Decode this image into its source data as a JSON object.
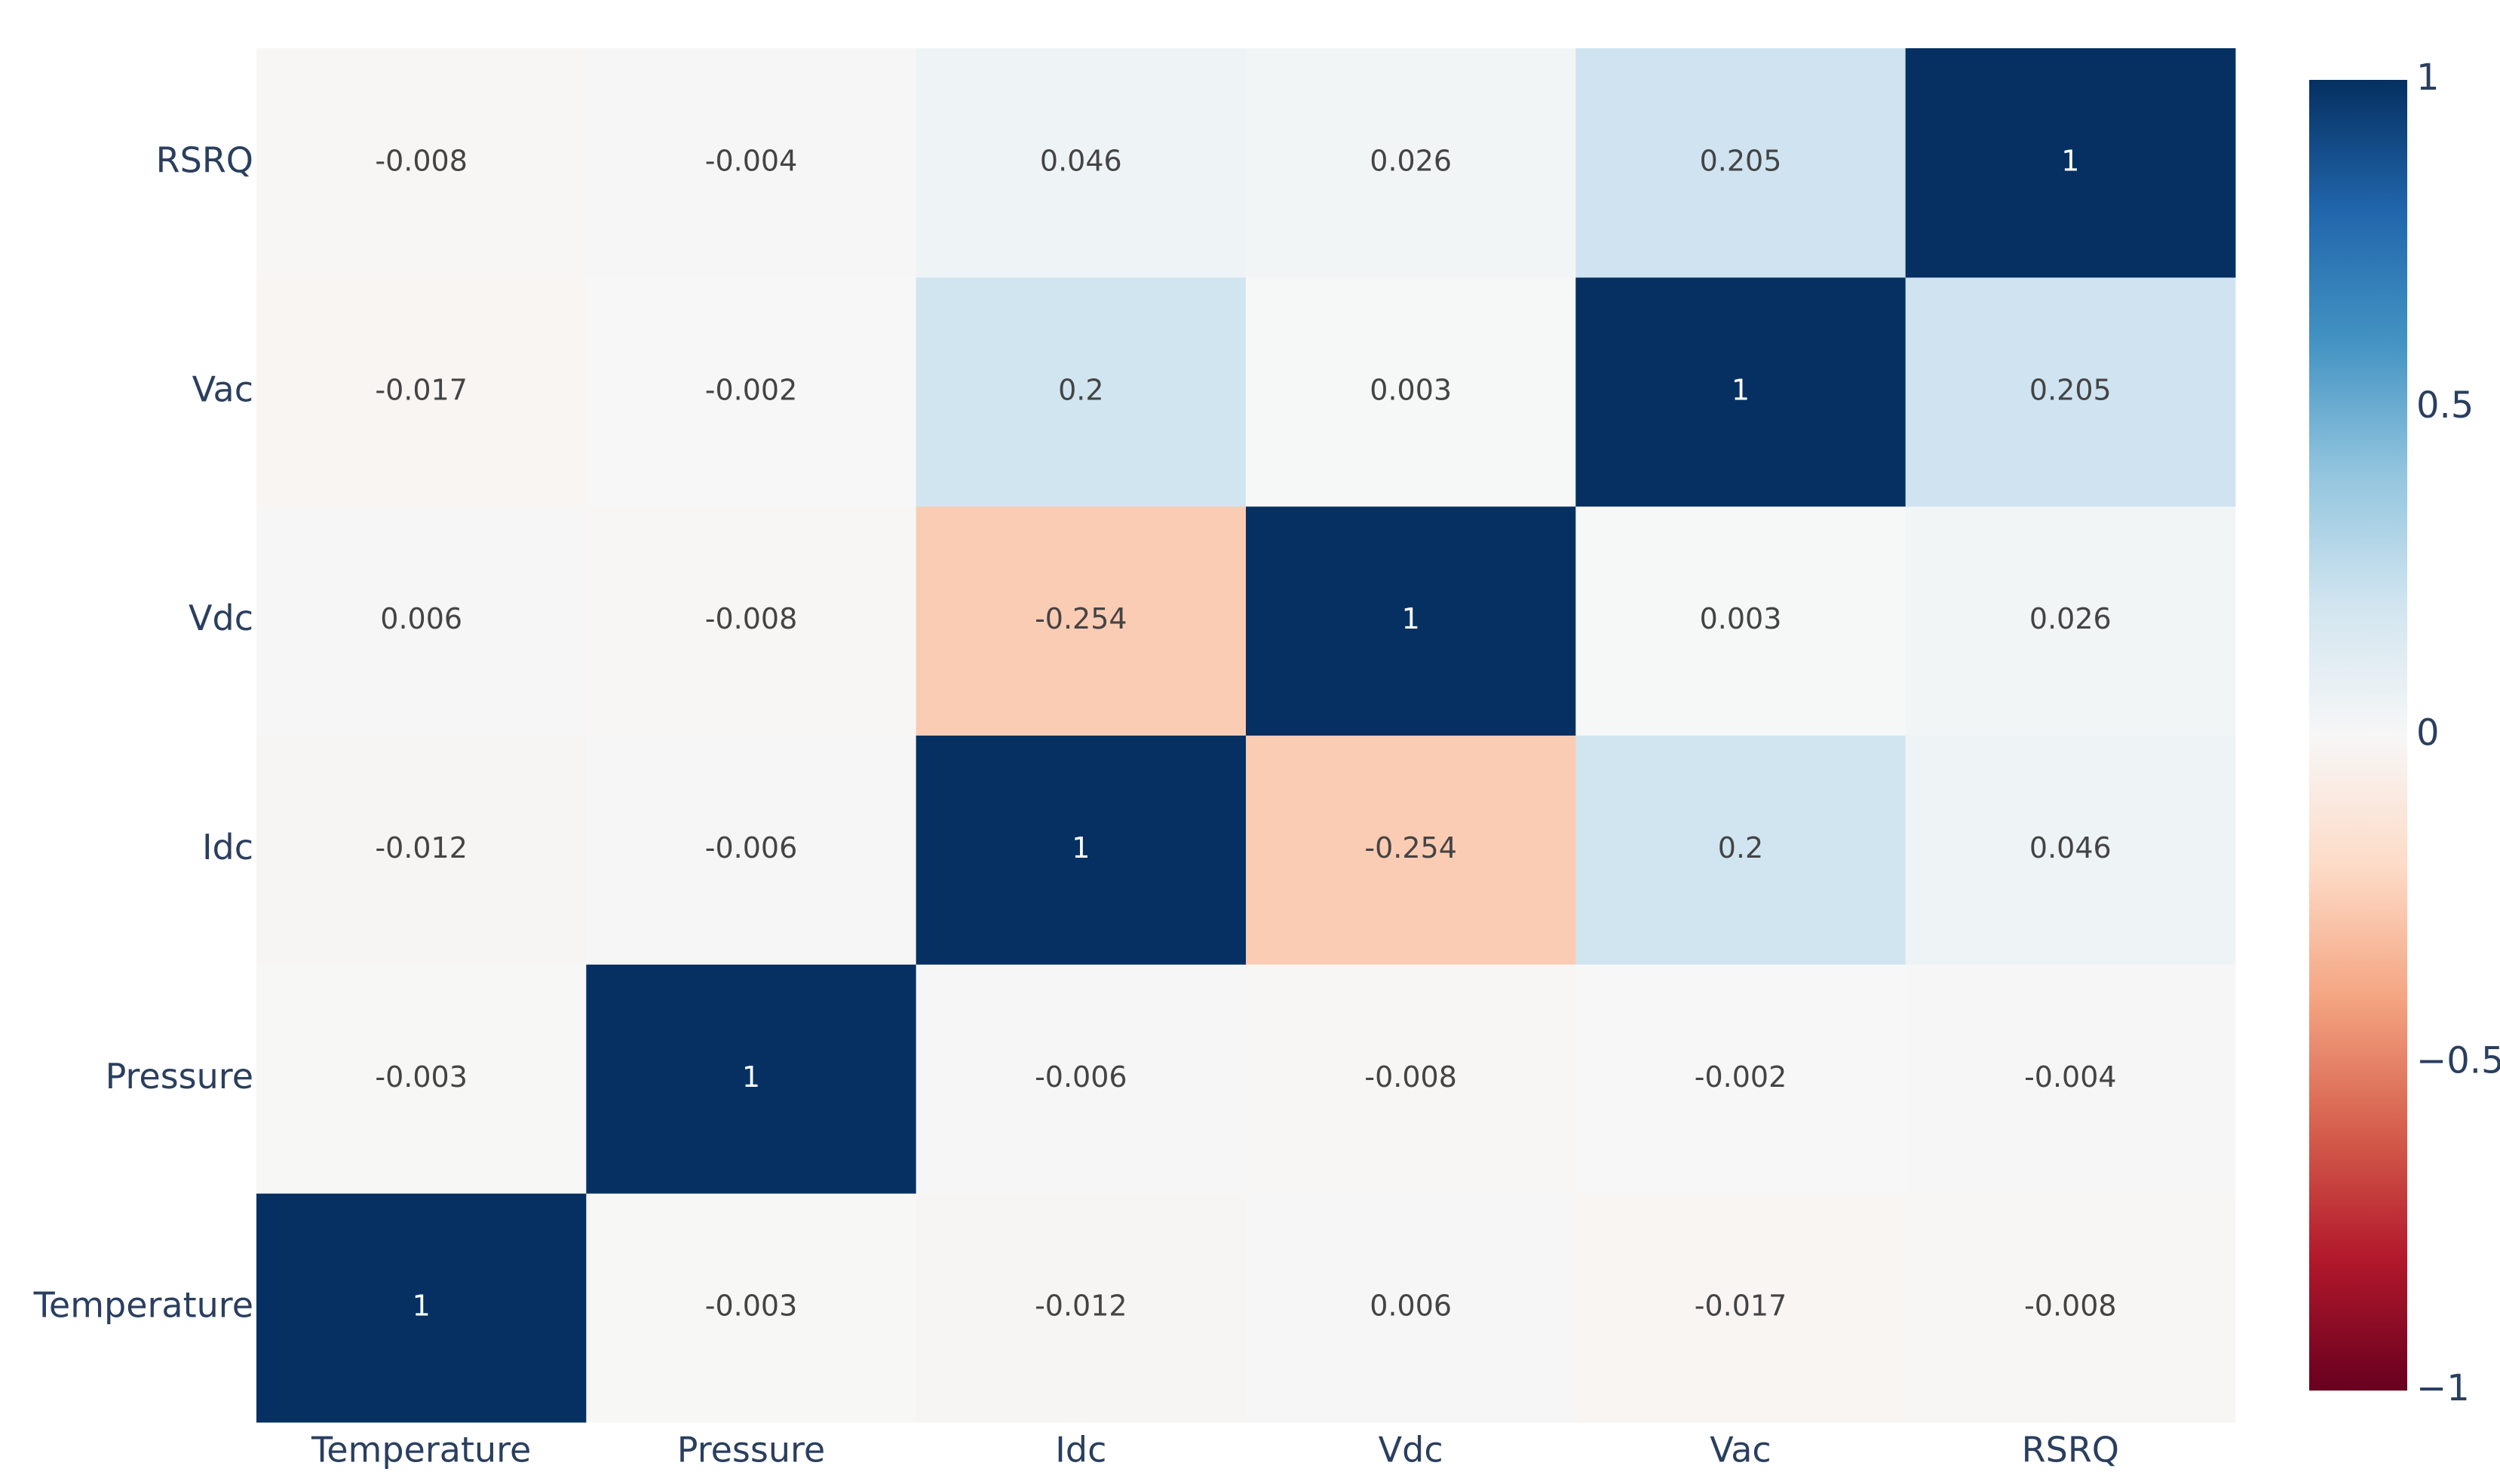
{
  "chart_data": {
    "type": "heatmap",
    "x": [
      "Temperature",
      "Pressure",
      "Idc",
      "Vdc",
      "Vac",
      "RSRQ"
    ],
    "y": [
      "Temperature",
      "Pressure",
      "Idc",
      "Vdc",
      "Vac",
      "RSRQ"
    ],
    "z": [
      [
        1,
        -0.003,
        -0.012,
        0.006,
        -0.017,
        -0.008
      ],
      [
        -0.003,
        1,
        -0.006,
        -0.008,
        -0.002,
        -0.004
      ],
      [
        -0.012,
        -0.006,
        1,
        -0.254,
        0.2,
        0.046
      ],
      [
        0.006,
        -0.008,
        -0.254,
        1,
        0.003,
        0.026
      ],
      [
        -0.017,
        -0.002,
        0.2,
        0.003,
        1,
        0.205
      ],
      [
        -0.008,
        -0.004,
        0.046,
        0.026,
        0.205,
        1
      ]
    ],
    "zlim": [
      -1,
      1
    ],
    "zticks": [
      {
        "value": -1,
        "label": "−1"
      },
      {
        "value": -0.5,
        "label": "−0.5"
      },
      0,
      0.5,
      1
    ],
    "colorscale": [
      "#67001f",
      "#b2182b",
      "#d6604d",
      "#f4a582",
      "#fddbc7",
      "#f7f7f7",
      "#d1e5f0",
      "#92c5de",
      "#4393c3",
      "#2166ac",
      "#053061"
    ]
  }
}
